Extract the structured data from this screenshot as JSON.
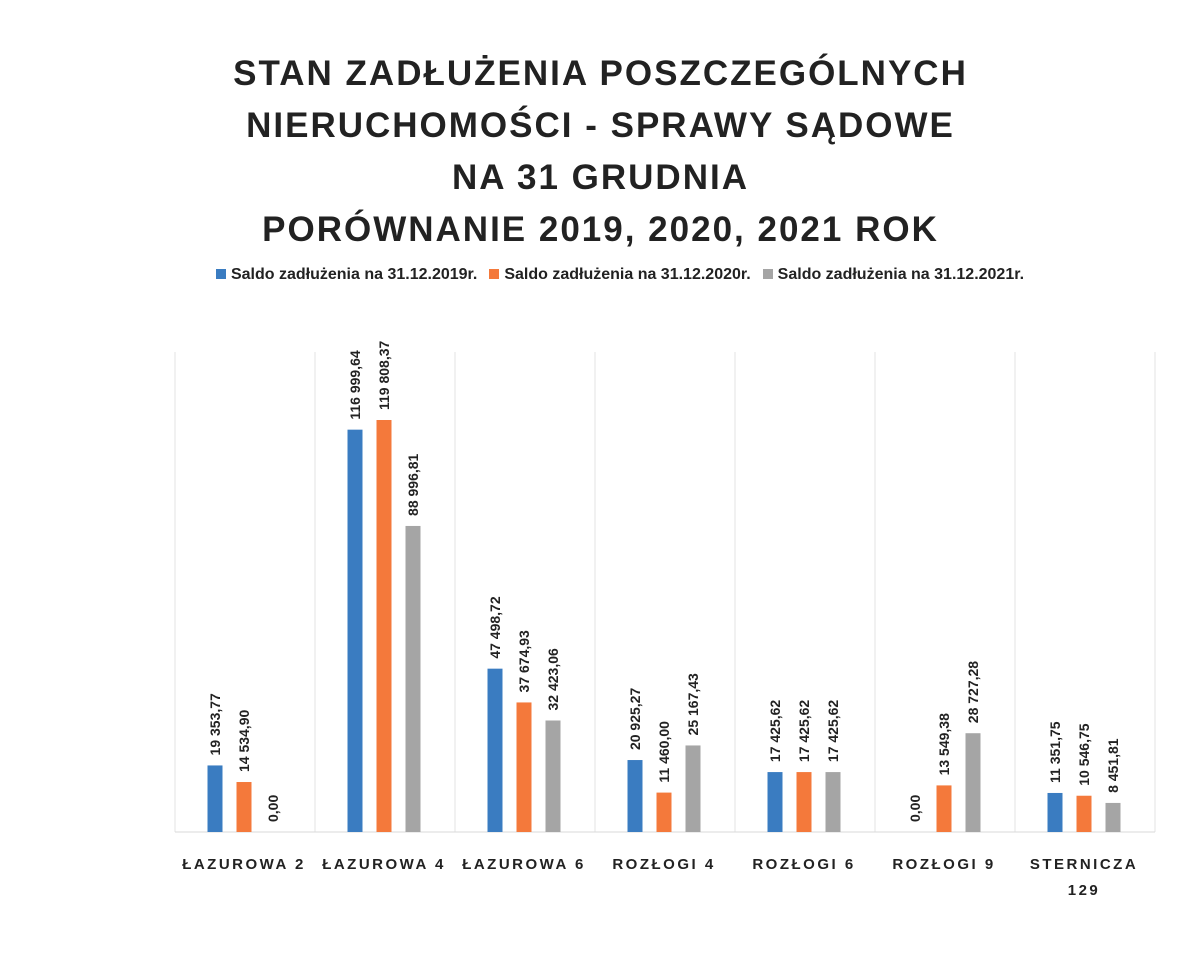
{
  "chart_data": {
    "type": "bar",
    "title": [
      "STAN ZADŁUŻENIA POSZCZEGÓLNYCH",
      "NIERUCHOMOŚCI - SPRAWY SĄDOWE",
      "NA 31 GRUDNIA",
      "PORÓWNANIE 2019, 2020, 2021 ROK"
    ],
    "categories": [
      "ŁAZUROWA 2",
      "ŁAZUROWA 4",
      "ŁAZUROWA 6",
      "ROZŁOGI 4",
      "ROZŁOGI 6",
      "ROZŁOGI 9",
      "STERNICZA 129"
    ],
    "series": [
      {
        "name": "Saldo zadłużenia na 31.12.2019r.",
        "color": "#3a7cc1",
        "values": [
          19353.77,
          116999.64,
          47498.72,
          20925.27,
          17425.62,
          0,
          11351.75
        ],
        "value_labels": [
          "19 353,77",
          "116 999,64",
          "47 498,72",
          "20 925,27",
          "17 425,62",
          "0,00",
          "11 351,75"
        ]
      },
      {
        "name": "Saldo zadłużenia na 31.12.2020r.",
        "color": "#f4793b",
        "values": [
          14534.9,
          119808.37,
          37674.93,
          11460.0,
          17425.62,
          13549.38,
          10546.75
        ],
        "value_labels": [
          "14 534,90",
          "119 808,37",
          "37 674,93",
          "11 460,00",
          "17 425,62",
          "13 549,38",
          "10 546,75"
        ]
      },
      {
        "name": "Saldo zadłużenia na 31.12.2021r.",
        "color": "#a5a5a5",
        "values": [
          0,
          88996.81,
          32423.06,
          25167.43,
          17425.62,
          28727.28,
          8451.81
        ],
        "value_labels": [
          "0,00",
          "88 996,81",
          "32 423,06",
          "25 167,43",
          "17 425,62",
          "28 727,28",
          "8 451,81"
        ]
      }
    ],
    "legend": "top"
  }
}
